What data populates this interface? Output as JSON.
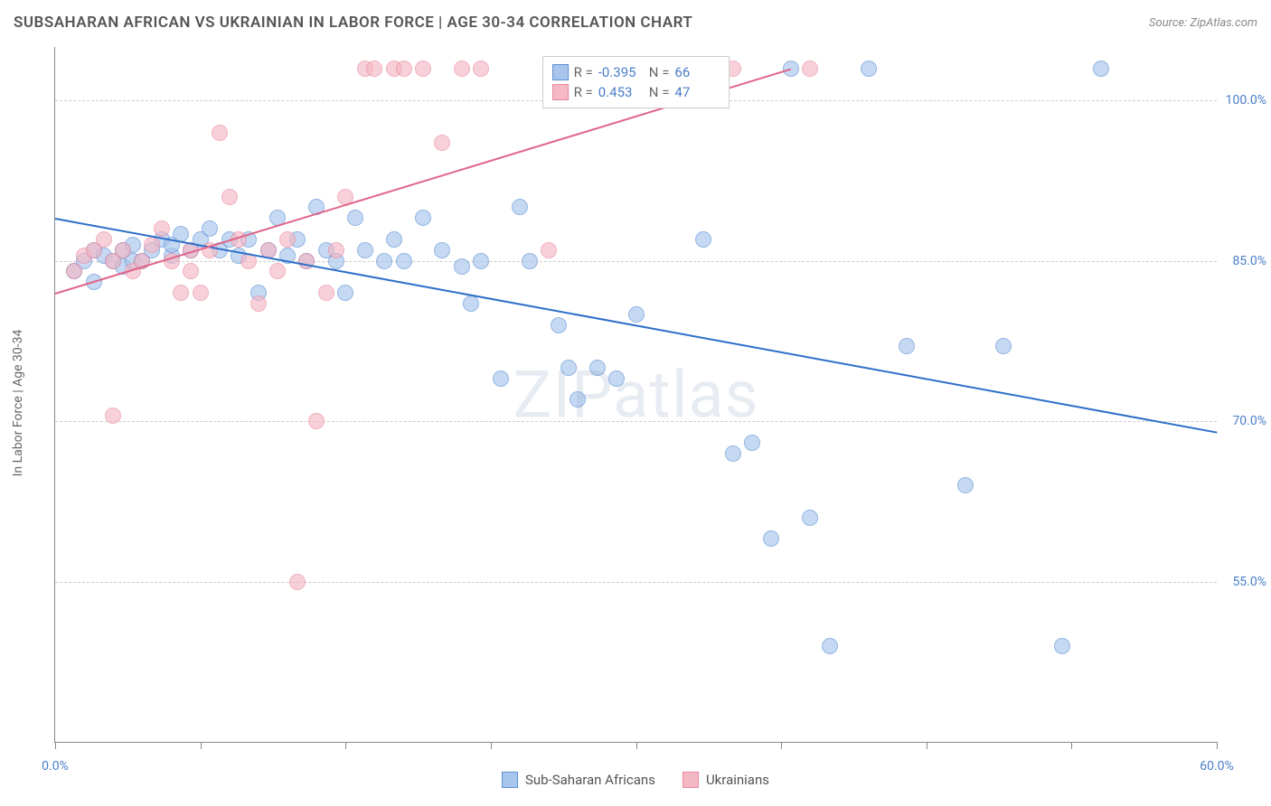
{
  "header": {
    "title": "SUBSAHARAN AFRICAN VS UKRAINIAN IN LABOR FORCE | AGE 30-34 CORRELATION CHART",
    "source": "Source: ZipAtlas.com"
  },
  "watermark": "ZIPatlas",
  "chart": {
    "type": "scatter",
    "y_axis_label": "In Labor Force | Age 30-34",
    "xlim": [
      0,
      60
    ],
    "ylim": [
      40,
      105
    ],
    "x_ticks": [
      0,
      7.5,
      15,
      22.5,
      30,
      37.5,
      45,
      52.5,
      60
    ],
    "x_tick_labels": {
      "0": "0.0%",
      "60": "60.0%"
    },
    "y_gridlines": [
      55,
      70,
      85,
      100
    ],
    "y_tick_labels": {
      "55": "55.0%",
      "70": "70.0%",
      "85": "85.0%",
      "100": "100.0%"
    },
    "gridline_color": "#cccccc",
    "axis_color": "#888888",
    "tick_label_color": "#4a7ec9",
    "background_color": "#ffffff",
    "marker_radius": 9,
    "marker_opacity": 0.65,
    "series": [
      {
        "name": "Sub-Saharan Africans",
        "color_fill": "#a8c5ed",
        "color_stroke": "#5a8fd4",
        "R": "-0.395",
        "N": "66",
        "trend": {
          "x1": 0,
          "y1": 89,
          "x2": 60,
          "y2": 69,
          "color": "#2d6fc9",
          "width": 2
        },
        "points": [
          [
            1,
            84
          ],
          [
            1.5,
            85
          ],
          [
            2,
            86
          ],
          [
            2,
            83
          ],
          [
            2.5,
            85.5
          ],
          [
            3,
            85
          ],
          [
            3.5,
            86
          ],
          [
            3.5,
            84.5
          ],
          [
            4,
            85
          ],
          [
            4,
            86.5
          ],
          [
            4.5,
            85
          ],
          [
            5,
            86
          ],
          [
            5.5,
            87
          ],
          [
            6,
            85.5
          ],
          [
            6,
            86.5
          ],
          [
            6.5,
            87.5
          ],
          [
            7,
            86
          ],
          [
            7.5,
            87
          ],
          [
            8,
            88
          ],
          [
            8.5,
            86
          ],
          [
            9,
            87
          ],
          [
            9.5,
            85.5
          ],
          [
            10,
            87
          ],
          [
            10.5,
            82
          ],
          [
            11,
            86
          ],
          [
            11.5,
            89
          ],
          [
            12,
            85.5
          ],
          [
            12.5,
            87
          ],
          [
            13,
            85
          ],
          [
            13.5,
            90
          ],
          [
            14,
            86
          ],
          [
            14.5,
            85
          ],
          [
            15,
            82
          ],
          [
            15.5,
            89
          ],
          [
            16,
            86
          ],
          [
            17,
            85
          ],
          [
            17.5,
            87
          ],
          [
            18,
            85
          ],
          [
            19,
            89
          ],
          [
            20,
            86
          ],
          [
            21,
            84.5
          ],
          [
            21.5,
            81
          ],
          [
            22,
            85
          ],
          [
            23,
            74
          ],
          [
            24,
            90
          ],
          [
            24.5,
            85
          ],
          [
            26,
            79
          ],
          [
            26.5,
            75
          ],
          [
            27,
            72
          ],
          [
            28,
            75
          ],
          [
            29,
            74
          ],
          [
            30,
            80
          ],
          [
            33,
            103
          ],
          [
            33.5,
            87
          ],
          [
            35,
            67
          ],
          [
            36,
            68
          ],
          [
            37,
            59
          ],
          [
            38,
            103
          ],
          [
            39,
            61
          ],
          [
            40,
            49
          ],
          [
            42,
            103
          ],
          [
            44,
            77
          ],
          [
            47,
            64
          ],
          [
            49,
            77
          ],
          [
            52,
            49
          ],
          [
            54,
            103
          ]
        ]
      },
      {
        "name": "Ukrainians",
        "color_fill": "#f5b8c5",
        "color_stroke": "#e8889e",
        "R": "0.453",
        "N": "47",
        "trend": {
          "x1": 0,
          "y1": 82,
          "x2": 38,
          "y2": 103,
          "color": "#e06588",
          "width": 2
        },
        "points": [
          [
            1,
            84
          ],
          [
            1.5,
            85.5
          ],
          [
            2,
            86
          ],
          [
            2.5,
            87
          ],
          [
            3,
            85
          ],
          [
            3.5,
            86
          ],
          [
            3,
            70.5
          ],
          [
            4,
            84
          ],
          [
            4.5,
            85
          ],
          [
            5,
            86.5
          ],
          [
            5.5,
            88
          ],
          [
            6,
            85
          ],
          [
            6.5,
            82
          ],
          [
            7,
            86
          ],
          [
            7,
            84
          ],
          [
            7.5,
            82
          ],
          [
            8,
            86
          ],
          [
            8.5,
            97
          ],
          [
            9,
            91
          ],
          [
            9.5,
            87
          ],
          [
            10,
            85
          ],
          [
            10.5,
            81
          ],
          [
            11,
            86
          ],
          [
            11.5,
            84
          ],
          [
            12,
            87
          ],
          [
            12.5,
            55
          ],
          [
            13,
            85
          ],
          [
            13.5,
            70
          ],
          [
            14,
            82
          ],
          [
            14.5,
            86
          ],
          [
            15,
            91
          ],
          [
            16,
            103
          ],
          [
            16.5,
            103
          ],
          [
            17.5,
            103
          ],
          [
            18,
            103
          ],
          [
            19,
            103
          ],
          [
            20,
            96
          ],
          [
            21,
            103
          ],
          [
            22,
            103
          ],
          [
            25.5,
            86
          ],
          [
            27,
            103
          ],
          [
            30,
            103
          ],
          [
            31.5,
            103
          ],
          [
            33,
            103
          ],
          [
            34,
            103
          ],
          [
            35,
            103
          ],
          [
            39,
            103
          ]
        ]
      }
    ]
  },
  "legend": {
    "series1_label": "Sub-Saharan Africans",
    "series2_label": "Ukrainians"
  },
  "stats_box": {
    "r_label": "R =",
    "n_label": "N ="
  }
}
